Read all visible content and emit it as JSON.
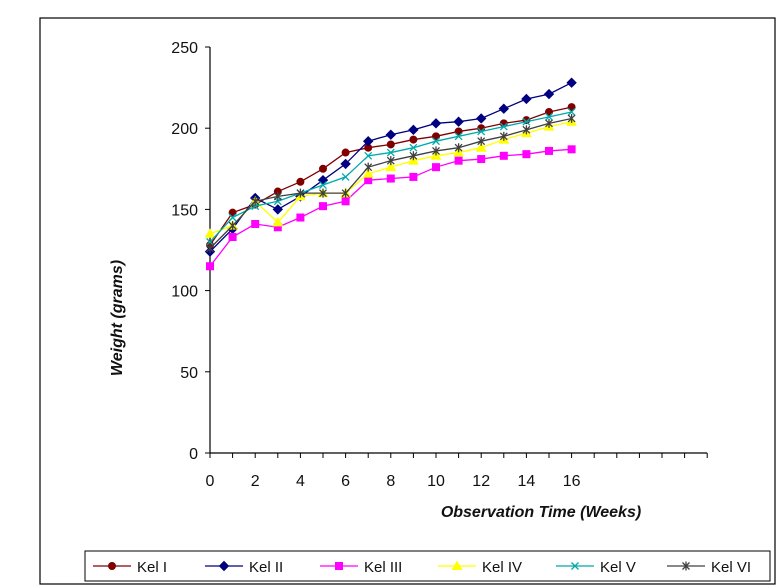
{
  "chart_data": {
    "type": "line",
    "title": "",
    "xlabel": "Observation Time (Weeks)",
    "ylabel": "Weight (grams)",
    "ylim": [
      0,
      250
    ],
    "y_ticks": [
      0,
      50,
      100,
      150,
      200,
      250
    ],
    "x_tick_labels": [
      "0",
      "2",
      "4",
      "6",
      "8",
      "10",
      "12",
      "14",
      "16"
    ],
    "x": [
      0,
      1,
      2,
      3,
      4,
      5,
      6,
      7,
      8,
      9,
      10,
      11,
      12,
      13,
      14,
      15,
      16
    ],
    "grid": false,
    "legend_position": "bottom",
    "series": [
      {
        "name": "Kel I",
        "color": "#800000",
        "marker": "circle",
        "values": [
          128,
          148,
          153,
          161,
          167,
          175,
          185,
          188,
          190,
          193,
          195,
          198,
          200,
          203,
          205,
          210,
          213
        ]
      },
      {
        "name": "Kel II",
        "color": "#000080",
        "marker": "diamond",
        "values": [
          124,
          138,
          157,
          150,
          158,
          168,
          178,
          192,
          196,
          199,
          203,
          204,
          206,
          212,
          218,
          221,
          228
        ]
      },
      {
        "name": "Kel III",
        "color": "#ff00ff",
        "marker": "square",
        "values": [
          115,
          133,
          141,
          139,
          145,
          152,
          155,
          168,
          169,
          170,
          176,
          180,
          181,
          183,
          184,
          186,
          187
        ]
      },
      {
        "name": "Kel IV",
        "color": "#ffff00",
        "marker": "triangle",
        "values": [
          135,
          140,
          155,
          142,
          158,
          160,
          160,
          172,
          176,
          180,
          183,
          185,
          188,
          193,
          197,
          201,
          204
        ]
      },
      {
        "name": "Kel V",
        "color": "#00aaaa",
        "marker": "x",
        "values": [
          130,
          145,
          152,
          155,
          160,
          165,
          170,
          183,
          185,
          188,
          192,
          195,
          198,
          201,
          204,
          207,
          210
        ]
      },
      {
        "name": "Kel VI",
        "color": "#404040",
        "marker": "star",
        "values": [
          126,
          140,
          155,
          158,
          160,
          160,
          160,
          176,
          180,
          183,
          186,
          188,
          192,
          195,
          199,
          203,
          206
        ]
      }
    ]
  }
}
